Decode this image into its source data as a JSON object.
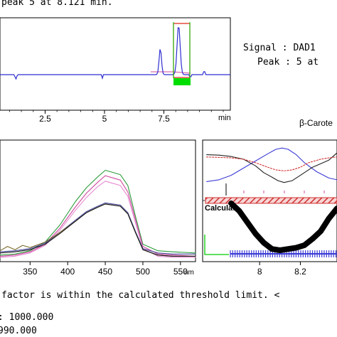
{
  "header": {
    "line": "peak 5 at 8.121 min."
  },
  "signal": {
    "signal_line": "Signal : DAD1",
    "peak_line": "Peak : 5 at"
  },
  "chromatogram": {
    "x_ticks": [
      {
        "value": 2.5,
        "label": "2.5"
      },
      {
        "value": 5,
        "label": "5"
      },
      {
        "value": 7.5,
        "label": "7.5"
      }
    ],
    "x_unit": "min",
    "xlim": [
      0.6,
      10.3
    ]
  },
  "spectrum_title": "β-Carote",
  "chart_data": [
    {
      "type": "line",
      "xlabel": "",
      "ylabel": "",
      "xlim": [
        310,
        570
      ],
      "ylim": [
        0,
        1
      ],
      "x_unit": "nm",
      "x_ticks": [
        350,
        400,
        450,
        500,
        550
      ],
      "x_tick_labels": [
        "350",
        "400",
        "450",
        "500",
        "550"
      ],
      "series": [
        {
          "color": "#2e9e3e",
          "x": [
            310,
            330,
            350,
            370,
            390,
            410,
            425,
            440,
            450,
            460,
            470,
            480,
            490,
            500,
            520,
            540,
            570
          ],
          "y": [
            0.06,
            0.07,
            0.1,
            0.18,
            0.34,
            0.55,
            0.68,
            0.78,
            0.84,
            0.82,
            0.8,
            0.7,
            0.42,
            0.16,
            0.1,
            0.09,
            0.08
          ]
        },
        {
          "color": "#d04aa0",
          "x": [
            310,
            330,
            350,
            370,
            390,
            410,
            425,
            440,
            450,
            460,
            470,
            480,
            490,
            500,
            520,
            540,
            570
          ],
          "y": [
            0.05,
            0.06,
            0.09,
            0.16,
            0.31,
            0.5,
            0.63,
            0.73,
            0.79,
            0.77,
            0.75,
            0.64,
            0.39,
            0.14,
            0.07,
            0.06,
            0.05
          ]
        },
        {
          "color": "#e58ad1",
          "x": [
            310,
            330,
            350,
            370,
            390,
            410,
            425,
            440,
            450,
            460,
            470,
            480,
            490,
            500,
            520,
            540,
            570
          ],
          "y": [
            0.04,
            0.05,
            0.08,
            0.15,
            0.29,
            0.47,
            0.59,
            0.69,
            0.74,
            0.72,
            0.7,
            0.6,
            0.36,
            0.12,
            0.05,
            0.04,
            0.04
          ]
        },
        {
          "color": "#4a4a9e",
          "x": [
            310,
            330,
            350,
            370,
            390,
            410,
            425,
            440,
            450,
            460,
            470,
            480,
            490,
            500,
            520,
            540,
            570
          ],
          "y": [
            0.09,
            0.1,
            0.12,
            0.17,
            0.27,
            0.38,
            0.46,
            0.51,
            0.54,
            0.53,
            0.52,
            0.45,
            0.28,
            0.12,
            0.08,
            0.07,
            0.07
          ]
        },
        {
          "color": "#7a6a2a",
          "x": [
            310,
            320,
            330,
            340,
            350,
            370,
            390,
            410,
            425,
            440,
            450,
            460,
            470,
            480,
            490,
            500,
            520,
            540,
            570
          ],
          "y": [
            0.1,
            0.14,
            0.11,
            0.15,
            0.13,
            0.18,
            0.27,
            0.37,
            0.45,
            0.5,
            0.53,
            0.52,
            0.51,
            0.44,
            0.27,
            0.11,
            0.06,
            0.05,
            0.05
          ]
        },
        {
          "color": "#1a1a1a",
          "x": [
            310,
            330,
            350,
            370,
            390,
            410,
            425,
            440,
            450,
            460,
            470,
            480,
            490,
            500,
            520,
            540,
            570
          ],
          "y": [
            0.08,
            0.09,
            0.11,
            0.16,
            0.26,
            0.37,
            0.45,
            0.5,
            0.53,
            0.52,
            0.51,
            0.44,
            0.27,
            0.11,
            0.06,
            0.05,
            0.05
          ]
        }
      ]
    },
    {
      "type": "line",
      "xlabel": "",
      "ylabel": "",
      "xlim": [
        7.72,
        8.38
      ],
      "ylim": [
        0,
        1
      ],
      "x_ticks": [
        8,
        8.2
      ],
      "x_tick_labels": [
        "8",
        "8.2"
      ],
      "series": [
        {
          "color": "#3b3bd6",
          "x": [
            7.74,
            7.8,
            7.86,
            7.92,
            7.98,
            8.04,
            8.08,
            8.11,
            8.14,
            8.18,
            8.22,
            8.28,
            8.34,
            8.38
          ],
          "y": [
            0.2,
            0.24,
            0.34,
            0.5,
            0.66,
            0.82,
            0.92,
            0.95,
            0.92,
            0.8,
            0.62,
            0.42,
            0.28,
            0.24
          ]
        },
        {
          "color": "#222222",
          "x": [
            7.74,
            7.8,
            7.86,
            7.92,
            7.98,
            8.02,
            8.06,
            8.09,
            8.12,
            8.16,
            8.2,
            8.26,
            8.3,
            8.34,
            8.38
          ],
          "y": [
            0.8,
            0.79,
            0.76,
            0.7,
            0.55,
            0.4,
            0.3,
            0.22,
            0.18,
            0.22,
            0.34,
            0.52,
            0.6,
            0.68,
            0.84
          ]
        },
        {
          "color": "#d03030",
          "dashed": true,
          "x": [
            7.74,
            7.8,
            7.86,
            7.92,
            7.98,
            8.04,
            8.08,
            8.12,
            8.16,
            8.2,
            8.24,
            8.3,
            8.34,
            8.38
          ],
          "y": [
            0.75,
            0.74,
            0.73,
            0.7,
            0.62,
            0.52,
            0.46,
            0.44,
            0.46,
            0.52,
            0.62,
            0.7,
            0.73,
            0.75
          ]
        },
        {
          "color": "#000000",
          "thick": true,
          "x": [
            7.86,
            7.9,
            7.94,
            7.98,
            8.02,
            8.06,
            8.1,
            8.14,
            8.18,
            8.22,
            8.26,
            8.3,
            8.34,
            8.38
          ],
          "y": [
            0.62,
            0.56,
            0.47,
            0.38,
            0.31,
            0.26,
            0.25,
            0.26,
            0.27,
            0.29,
            0.34,
            0.4,
            0.5,
            0.58
          ]
        }
      ],
      "annotation": "Calculate"
    }
  ],
  "footer": {
    "line1": "factor is within the calculated threshold limit. <",
    "line2": ": 1000.000",
    "line3": "990.000"
  }
}
